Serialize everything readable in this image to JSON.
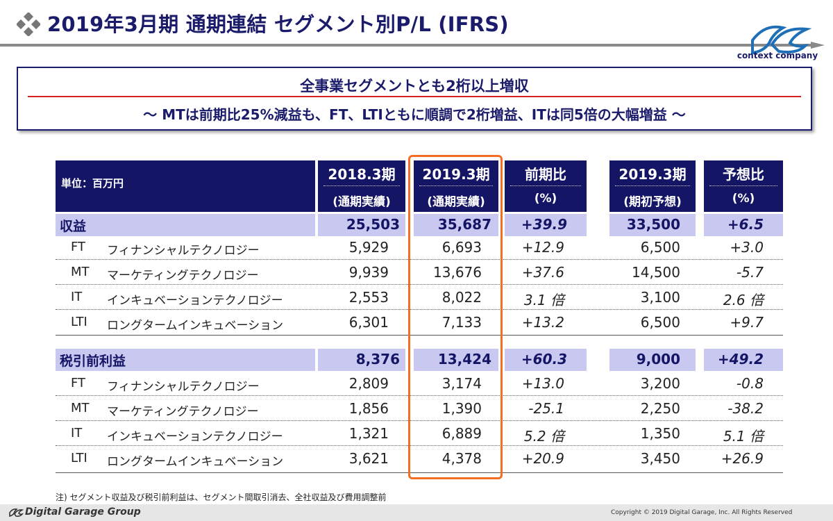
{
  "header": {
    "title": "2019年3月期 通期連結 セグメント別P/L (IFRS)",
    "logo_tagline": "context company"
  },
  "summary": {
    "line1": "全事業セグメントとも2桁以上増収",
    "line2": "～ MTは前期比25%減益も、FT、LTIともに順調で2桁増益、ITは同5倍の大幅増益 ～"
  },
  "table": {
    "unit_label": "単位：百万円",
    "columns": [
      {
        "top": "2018.3期",
        "sub": "(通期実績)"
      },
      {
        "top": "2019.3期",
        "sub": "(通期実績)"
      },
      {
        "top": "前期比",
        "sub": "(%)"
      },
      {
        "top": "2019.3期",
        "sub": "(期初予想)"
      },
      {
        "top": "予想比",
        "sub": "(%)"
      }
    ],
    "revenue": {
      "label": "収益",
      "values": [
        "25,503",
        "35,687",
        "+39.9",
        "33,500",
        "+6.5"
      ],
      "rows": [
        {
          "code": "FT",
          "name": "フィナンシャルテクノロジー",
          "values": [
            "5,929",
            "6,693",
            "+12.9",
            "6,500",
            "+3.0"
          ]
        },
        {
          "code": "MT",
          "name": "マーケティングテクノロジー",
          "values": [
            "9,939",
            "13,676",
            "+37.6",
            "14,500",
            "-5.7"
          ]
        },
        {
          "code": "IT",
          "name": "インキュベーションテクノロジー",
          "values": [
            "2,553",
            "8,022",
            "3.1 倍",
            "3,100",
            "2.6 倍"
          ]
        },
        {
          "code": "LTI",
          "name": "ロングタームインキュベーション",
          "values": [
            "6,301",
            "7,133",
            "+13.2",
            "6,500",
            "+9.7"
          ]
        }
      ]
    },
    "profit": {
      "label": "税引前利益",
      "values": [
        "8,376",
        "13,424",
        "+60.3",
        "9,000",
        "+49.2"
      ],
      "rows": [
        {
          "code": "FT",
          "name": "フィナンシャルテクノロジー",
          "values": [
            "2,809",
            "3,174",
            "+13.0",
            "3,200",
            "-0.8"
          ]
        },
        {
          "code": "MT",
          "name": "マーケティングテクノロジー",
          "values": [
            "1,856",
            "1,390",
            "-25.1",
            "2,250",
            "-38.2"
          ]
        },
        {
          "code": "IT",
          "name": "インキュベーションテクノロジー",
          "values": [
            "1,321",
            "6,889",
            "5.2 倍",
            "1,350",
            "5.1 倍"
          ]
        },
        {
          "code": "LTI",
          "name": "ロングタームインキュベーション",
          "values": [
            "3,621",
            "4,378",
            "+20.9",
            "3,450",
            "+26.9"
          ]
        }
      ]
    }
  },
  "note": "注) セグメント収益及び税引前利益は、セグメント間取引消去、全社収益及び費用調整前",
  "footer": {
    "company": "Digital Garage Group",
    "copyright": "Copyright © 2019 Digital Garage, Inc. All Rights Reserved"
  },
  "colors": {
    "navy": "#141565",
    "band": "#c9c8f0",
    "highlight_orange": "#f26e22",
    "accent_red": "#d81e1e"
  }
}
